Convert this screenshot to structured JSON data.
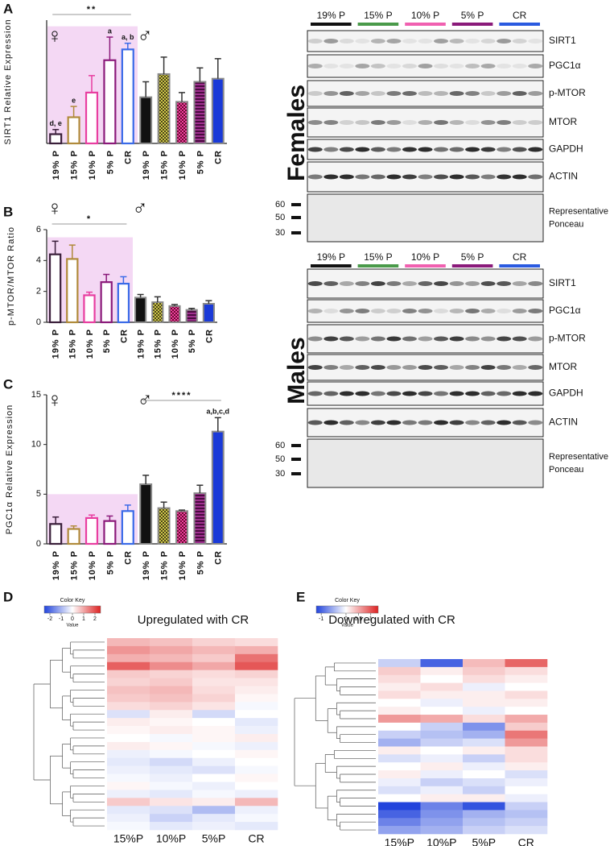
{
  "chart_data": [
    {
      "panel": "A",
      "type": "bar",
      "ylabel": "SIRT1 Relative Expression",
      "ylim": [
        0,
        8
      ],
      "yticks": [],
      "shade_to": 7.6,
      "categories": [
        "19% P",
        "15% P",
        "10% P",
        "5% P",
        "CR"
      ],
      "colors": [
        "#3a1f3a",
        "#b08a3a",
        "#e83ea0",
        "#8b1a7a",
        "#3a6ae8"
      ],
      "groups": [
        {
          "symbol": "♀",
          "values": [
            0.6,
            1.7,
            3.3,
            5.4,
            6.1
          ],
          "errors": [
            0.3,
            0.7,
            1.1,
            1.5,
            0.4
          ]
        },
        {
          "symbol": "♂",
          "values": [
            3.0,
            4.5,
            2.7,
            4.0,
            4.2
          ],
          "errors": [
            1.0,
            1.1,
            0.6,
            0.9,
            1.3
          ]
        }
      ],
      "significance": [
        {
          "text": "**",
          "from": 0,
          "to": 4
        }
      ],
      "bar_labels": [
        {
          "text": "d, e",
          "bar": 0
        },
        {
          "text": "e",
          "bar": 1
        },
        {
          "text": "a",
          "bar": 3
        },
        {
          "text": "a, b",
          "bar": 4
        }
      ]
    },
    {
      "panel": "B",
      "type": "bar",
      "ylabel": "p-MTOR/MTOR Ratio",
      "ylim": [
        0,
        6
      ],
      "yticks": [
        0,
        2,
        4,
        6
      ],
      "shade_to": 5.5,
      "categories": [
        "19% P",
        "15% P",
        "10% P",
        "5% P",
        "CR"
      ],
      "colors": [
        "#3a1f3a",
        "#b08a3a",
        "#e83ea0",
        "#8b1a7a",
        "#3a6ae8"
      ],
      "groups": [
        {
          "symbol": "♀",
          "values": [
            4.4,
            4.1,
            1.75,
            2.6,
            2.5
          ],
          "errors": [
            0.85,
            0.9,
            0.2,
            0.5,
            0.45
          ]
        },
        {
          "symbol": "♂",
          "values": [
            1.6,
            1.3,
            1.05,
            0.8,
            1.2
          ],
          "errors": [
            0.2,
            0.35,
            0.1,
            0.1,
            0.2
          ]
        }
      ],
      "significance": [
        {
          "text": "*",
          "from": 0,
          "to": 4
        }
      ],
      "bar_labels": []
    },
    {
      "panel": "C",
      "type": "bar",
      "ylabel": "PGC1α Relative Expression",
      "ylim": [
        0,
        15
      ],
      "yticks": [
        0,
        5,
        10,
        15
      ],
      "shade_to": 5,
      "categories": [
        "19% P",
        "15% P",
        "10% P",
        "5% P",
        "CR"
      ],
      "colors": [
        "#3a1f3a",
        "#b08a3a",
        "#e83ea0",
        "#8b1a7a",
        "#3a6ae8"
      ],
      "groups": [
        {
          "symbol": "♀",
          "values": [
            2.0,
            1.5,
            2.6,
            2.3,
            3.3
          ],
          "errors": [
            0.7,
            0.3,
            0.3,
            0.5,
            0.6
          ]
        },
        {
          "symbol": "♂",
          "values": [
            6.0,
            3.6,
            3.3,
            5.1,
            11.3
          ],
          "errors": [
            0.9,
            0.6,
            0.1,
            0.8,
            1.4
          ]
        }
      ],
      "significance": [
        {
          "text": "****",
          "from": 5,
          "to": 9
        }
      ],
      "bar_labels": [
        {
          "text": "a,b,c,d",
          "bar": 9
        }
      ]
    },
    {
      "panel": "D",
      "type": "heatmap",
      "title": "Upregulated with CR",
      "key_title": "Color Key",
      "key_label": "Value",
      "zlim": [
        -2.5,
        2.5
      ],
      "zticks": [
        -2,
        -1,
        0,
        1,
        2
      ],
      "categories": [
        "15%P",
        "10%P",
        "5%P",
        "CR"
      ],
      "rows": [
        [
          0.8,
          0.7,
          0.5,
          0.4
        ],
        [
          1.2,
          1.0,
          0.8,
          0.9
        ],
        [
          0.9,
          0.8,
          0.6,
          1.6
        ],
        [
          1.8,
          1.3,
          1.0,
          1.9
        ],
        [
          0.6,
          0.5,
          0.4,
          0.5
        ],
        [
          0.5,
          0.6,
          0.3,
          0.3
        ],
        [
          0.7,
          0.8,
          0.4,
          0.2
        ],
        [
          0.6,
          0.7,
          0.5,
          0.1
        ],
        [
          0.4,
          0.5,
          0.3,
          -0.1
        ],
        [
          -0.4,
          0.2,
          -0.5,
          0.0
        ],
        [
          0.2,
          0.1,
          0.0,
          -0.3
        ],
        [
          0.1,
          0.2,
          0.1,
          -0.2
        ],
        [
          0.0,
          -0.1,
          0.1,
          0.2
        ],
        [
          0.2,
          0.1,
          -0.1,
          -0.2
        ],
        [
          -0.2,
          -0.1,
          0.0,
          0.1
        ],
        [
          -0.3,
          -0.5,
          -0.2,
          0.0
        ],
        [
          -0.2,
          -0.3,
          -0.4,
          -0.1
        ],
        [
          -0.1,
          -0.2,
          0.0,
          0.1
        ],
        [
          0.1,
          -0.1,
          -0.2,
          0.0
        ],
        [
          -0.2,
          -0.3,
          -0.1,
          -0.2
        ],
        [
          0.6,
          0.3,
          0.2,
          0.8
        ],
        [
          -0.3,
          -0.4,
          -0.9,
          -0.2
        ],
        [
          -0.2,
          -0.6,
          -0.3,
          -0.1
        ],
        [
          -0.1,
          -0.3,
          -0.2,
          -0.3
        ]
      ]
    },
    {
      "panel": "E",
      "type": "heatmap",
      "title": "Downregulated with CR",
      "key_title": "Color Key",
      "key_label": "Value",
      "zlim": [
        -1.2,
        1.3
      ],
      "zticks": [
        -1,
        0,
        0.5,
        1
      ],
      "categories": [
        "15%P",
        "10%P",
        "5%P",
        "CR"
      ],
      "rows": [
        [
          -0.3,
          -1.0,
          0.4,
          0.9
        ],
        [
          0.3,
          0.1,
          0.3,
          0.2
        ],
        [
          0.2,
          0.0,
          0.2,
          0.1
        ],
        [
          0.1,
          0.2,
          -0.1,
          0.0
        ],
        [
          0.2,
          0.1,
          0.1,
          0.2
        ],
        [
          0.0,
          -0.1,
          0.1,
          0.1
        ],
        [
          0.1,
          0.0,
          -0.1,
          0.0
        ],
        [
          0.6,
          0.5,
          0.2,
          0.5
        ],
        [
          0.0,
          -0.3,
          -0.7,
          0.3
        ],
        [
          -0.3,
          -0.4,
          -0.5,
          0.8
        ],
        [
          -0.5,
          -0.3,
          -0.2,
          0.6
        ],
        [
          0.1,
          0.0,
          0.1,
          0.2
        ],
        [
          -0.2,
          -0.1,
          -0.3,
          0.2
        ],
        [
          0.0,
          0.1,
          -0.1,
          0.1
        ],
        [
          0.1,
          -0.1,
          0.0,
          -0.2
        ],
        [
          -0.1,
          -0.3,
          -0.2,
          -0.1
        ],
        [
          -0.2,
          -0.1,
          -0.3,
          0.0
        ],
        [
          0.0,
          0.1,
          0.1,
          -0.1
        ],
        [
          -1.2,
          -0.8,
          -1.1,
          -0.3
        ],
        [
          -1.0,
          -0.7,
          -0.5,
          -0.4
        ],
        [
          -0.8,
          -0.6,
          -0.4,
          -0.3
        ],
        [
          -0.6,
          -0.5,
          -0.3,
          -0.2
        ]
      ]
    }
  ],
  "blots": [
    {
      "label": "Females",
      "groups": [
        {
          "name": "19% P",
          "color": "#111111"
        },
        {
          "name": "15% P",
          "color": "#4a9a4a"
        },
        {
          "name": "10% P",
          "color": "#f060b0"
        },
        {
          "name": "5% P",
          "color": "#8a1a7a"
        },
        {
          "name": "CR",
          "color": "#2a5ae0"
        }
      ],
      "rows": [
        [
          "SIRT1"
        ],
        [
          "PGC1α"
        ],
        [
          "p-MTOR"
        ],
        [
          "MTOR"
        ],
        [
          "GAPDH"
        ],
        [
          "ACTIN"
        ],
        [
          "Representative",
          "Ponceau"
        ]
      ],
      "markers": [
        60,
        50,
        30
      ]
    },
    {
      "label": "Males",
      "groups": [
        {
          "name": "19% P",
          "color": "#111111"
        },
        {
          "name": "15% P",
          "color": "#4a9a4a"
        },
        {
          "name": "10% P",
          "color": "#f060b0"
        },
        {
          "name": "5% P",
          "color": "#8a1a7a"
        },
        {
          "name": "CR",
          "color": "#2a5ae0"
        }
      ],
      "rows": [
        [
          "SIRT1"
        ],
        [
          "PGC1α"
        ],
        [
          "p-MTOR"
        ],
        [
          "MTOR"
        ],
        [
          "GAPDH"
        ],
        [
          "ACTIN"
        ],
        [
          "Representative",
          "Ponceau"
        ]
      ],
      "markers": [
        60,
        50,
        30
      ]
    }
  ]
}
